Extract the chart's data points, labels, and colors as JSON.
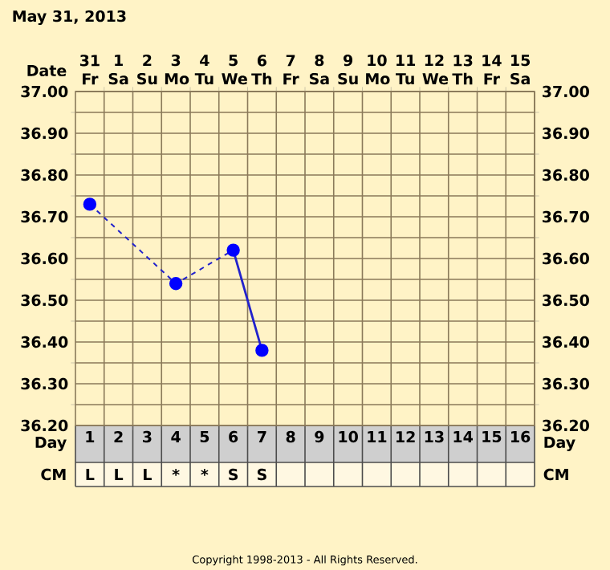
{
  "chart_data": {
    "type": "line",
    "title": "May 31, 2013",
    "xlabel": "Day",
    "x2label": "Date",
    "xlim": [
      0.5,
      16.5
    ],
    "xticks": [
      1,
      2,
      3,
      4,
      5,
      6,
      7,
      8,
      9,
      10,
      11,
      12,
      13,
      14,
      15,
      16
    ],
    "x2lim": [
      "2013-05-30T12:00",
      "2013-06-15T12:00"
    ],
    "x2ticks": [
      {
        "value": "2013-05-31",
        "label": "31 Fr"
      },
      {
        "value": "2013-06-01",
        "label": "1 Sa"
      },
      {
        "value": "2013-06-02",
        "label": "2 Su"
      },
      {
        "value": "2013-06-03",
        "label": "3 Mo"
      },
      {
        "value": "2013-06-04",
        "label": "4 Tu"
      },
      {
        "value": "2013-06-05",
        "label": "5 We"
      },
      {
        "value": "2013-06-06",
        "label": "6 Th"
      },
      {
        "value": "2013-06-07",
        "label": "7 Fr"
      },
      {
        "value": "2013-06-08",
        "label": "8 Sa"
      },
      {
        "value": "2013-06-09",
        "label": "9 Su"
      },
      {
        "value": "2013-06-10",
        "label": "10 Mo"
      },
      {
        "value": "2013-06-11",
        "label": "11 Tu"
      },
      {
        "value": "2013-06-12",
        "label": "12 We"
      },
      {
        "value": "2013-06-13",
        "label": "13 Th"
      },
      {
        "value": "2013-06-14",
        "label": "14 Fr"
      },
      {
        "value": "2013-06-15",
        "label": "15 Sa"
      }
    ],
    "ylim": [
      36.2,
      37.0
    ],
    "yticks": [
      {
        "value": 36.2,
        "label": "36.20"
      },
      {
        "value": 36.3,
        "label": "36.30"
      },
      {
        "value": 36.4,
        "label": "36.40"
      },
      {
        "value": 36.5,
        "label": "36.50"
      },
      {
        "value": 36.6,
        "label": "36.60"
      },
      {
        "value": 36.7,
        "label": "36.70"
      },
      {
        "value": 36.8,
        "label": "36.80"
      },
      {
        "value": 36.9,
        "label": "36.90"
      },
      {
        "value": 37.0,
        "label": "37.00"
      }
    ],
    "y2lim": [
      36.2,
      37.0
    ],
    "y2ticks": [
      {
        "value": 36.2,
        "label": "36.20"
      },
      {
        "value": 36.3,
        "label": "36.30"
      },
      {
        "value": 36.4,
        "label": "36.40"
      },
      {
        "value": 36.5,
        "label": "36.50"
      },
      {
        "value": 36.6,
        "label": "36.60"
      },
      {
        "value": 36.7,
        "label": "36.70"
      },
      {
        "value": 36.8,
        "label": "36.80"
      },
      {
        "value": 36.9,
        "label": "36.90"
      },
      {
        "value": 37.0,
        "label": "37.00"
      }
    ],
    "grid": true,
    "series": [
      {
        "x": [
          1,
          4,
          6
        ],
        "values": [
          36.73,
          36.54,
          36.62
        ],
        "color": "#2222cc",
        "line_style": "dashed",
        "marker": "none"
      },
      {
        "x": [
          6,
          7
        ],
        "values": [
          36.62,
          36.38
        ],
        "color": "#2222cc",
        "line_style": "solid",
        "marker": "none"
      },
      {
        "type": "scatter",
        "x": [
          1,
          4,
          6,
          7
        ],
        "values": [
          36.73,
          36.54,
          36.62,
          36.38
        ],
        "color": "#0000ff",
        "marker": "circle"
      }
    ],
    "annotations": [
      "CM",
      "L",
      "L",
      "L",
      "*",
      "*",
      "S",
      "S",
      "Copyright 1998-2013 - All Rights Reserved."
    ]
  }
}
